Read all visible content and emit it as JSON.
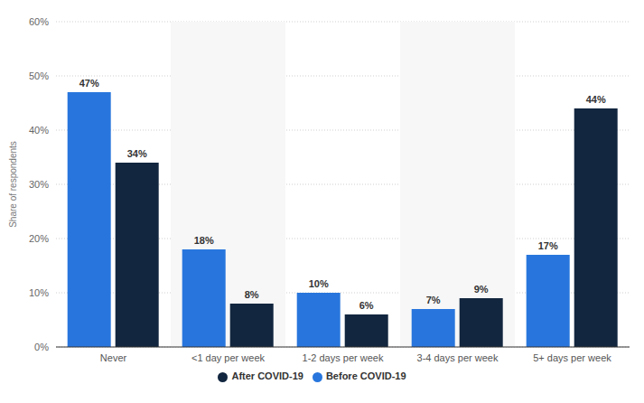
{
  "chart_data": {
    "type": "bar",
    "y_label": "Share of respondents",
    "categories": [
      "Never",
      "<1 day per week",
      "1-2 days per week",
      "3-4 days per week",
      "5+ days per week"
    ],
    "series": [
      {
        "name": "Before COVID-19",
        "color": "#2876dd",
        "values": [
          47,
          18,
          10,
          7,
          17
        ],
        "value_labels": [
          "47%",
          "18%",
          "10%",
          "7%",
          "17%"
        ]
      },
      {
        "name": "After COVID-19",
        "color": "#12263f",
        "values": [
          34,
          8,
          6,
          9,
          44
        ],
        "value_labels": [
          "34%",
          "8%",
          "6%",
          "9%",
          "44%"
        ]
      }
    ],
    "ylim": [
      0,
      60
    ],
    "yticks": [
      {
        "value": 0,
        "label": "0%"
      },
      {
        "value": 10,
        "label": "10%"
      },
      {
        "value": 20,
        "label": "20%"
      },
      {
        "value": 30,
        "label": "30%"
      },
      {
        "value": 40,
        "label": "40%"
      },
      {
        "value": 50,
        "label": "50%"
      },
      {
        "value": 60,
        "label": "60%"
      }
    ],
    "grid": true,
    "data_labels": true,
    "legend": "bottom"
  }
}
